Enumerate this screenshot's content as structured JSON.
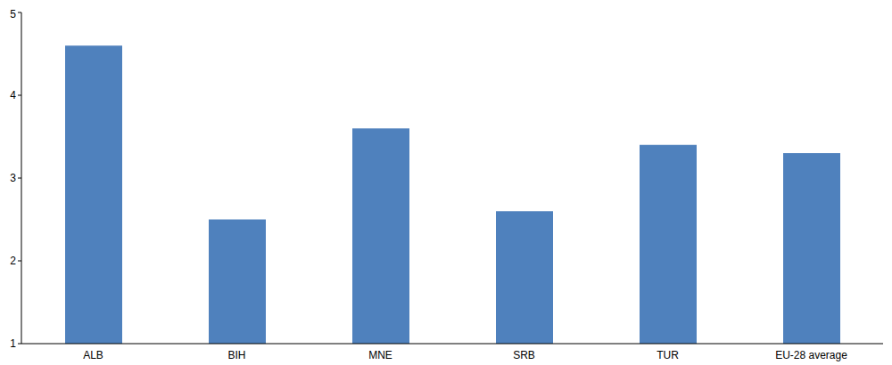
{
  "chart_data": {
    "type": "bar",
    "categories": [
      "ALB",
      "BIH",
      "MNE",
      "SRB",
      "TUR",
      "EU-28 average"
    ],
    "values": [
      4.6,
      2.5,
      3.6,
      2.6,
      3.4,
      3.3
    ],
    "color": "#4f81bd",
    "ylim": [
      1,
      5
    ],
    "yticks": [
      1,
      2,
      3,
      4,
      5
    ],
    "grid": false
  }
}
